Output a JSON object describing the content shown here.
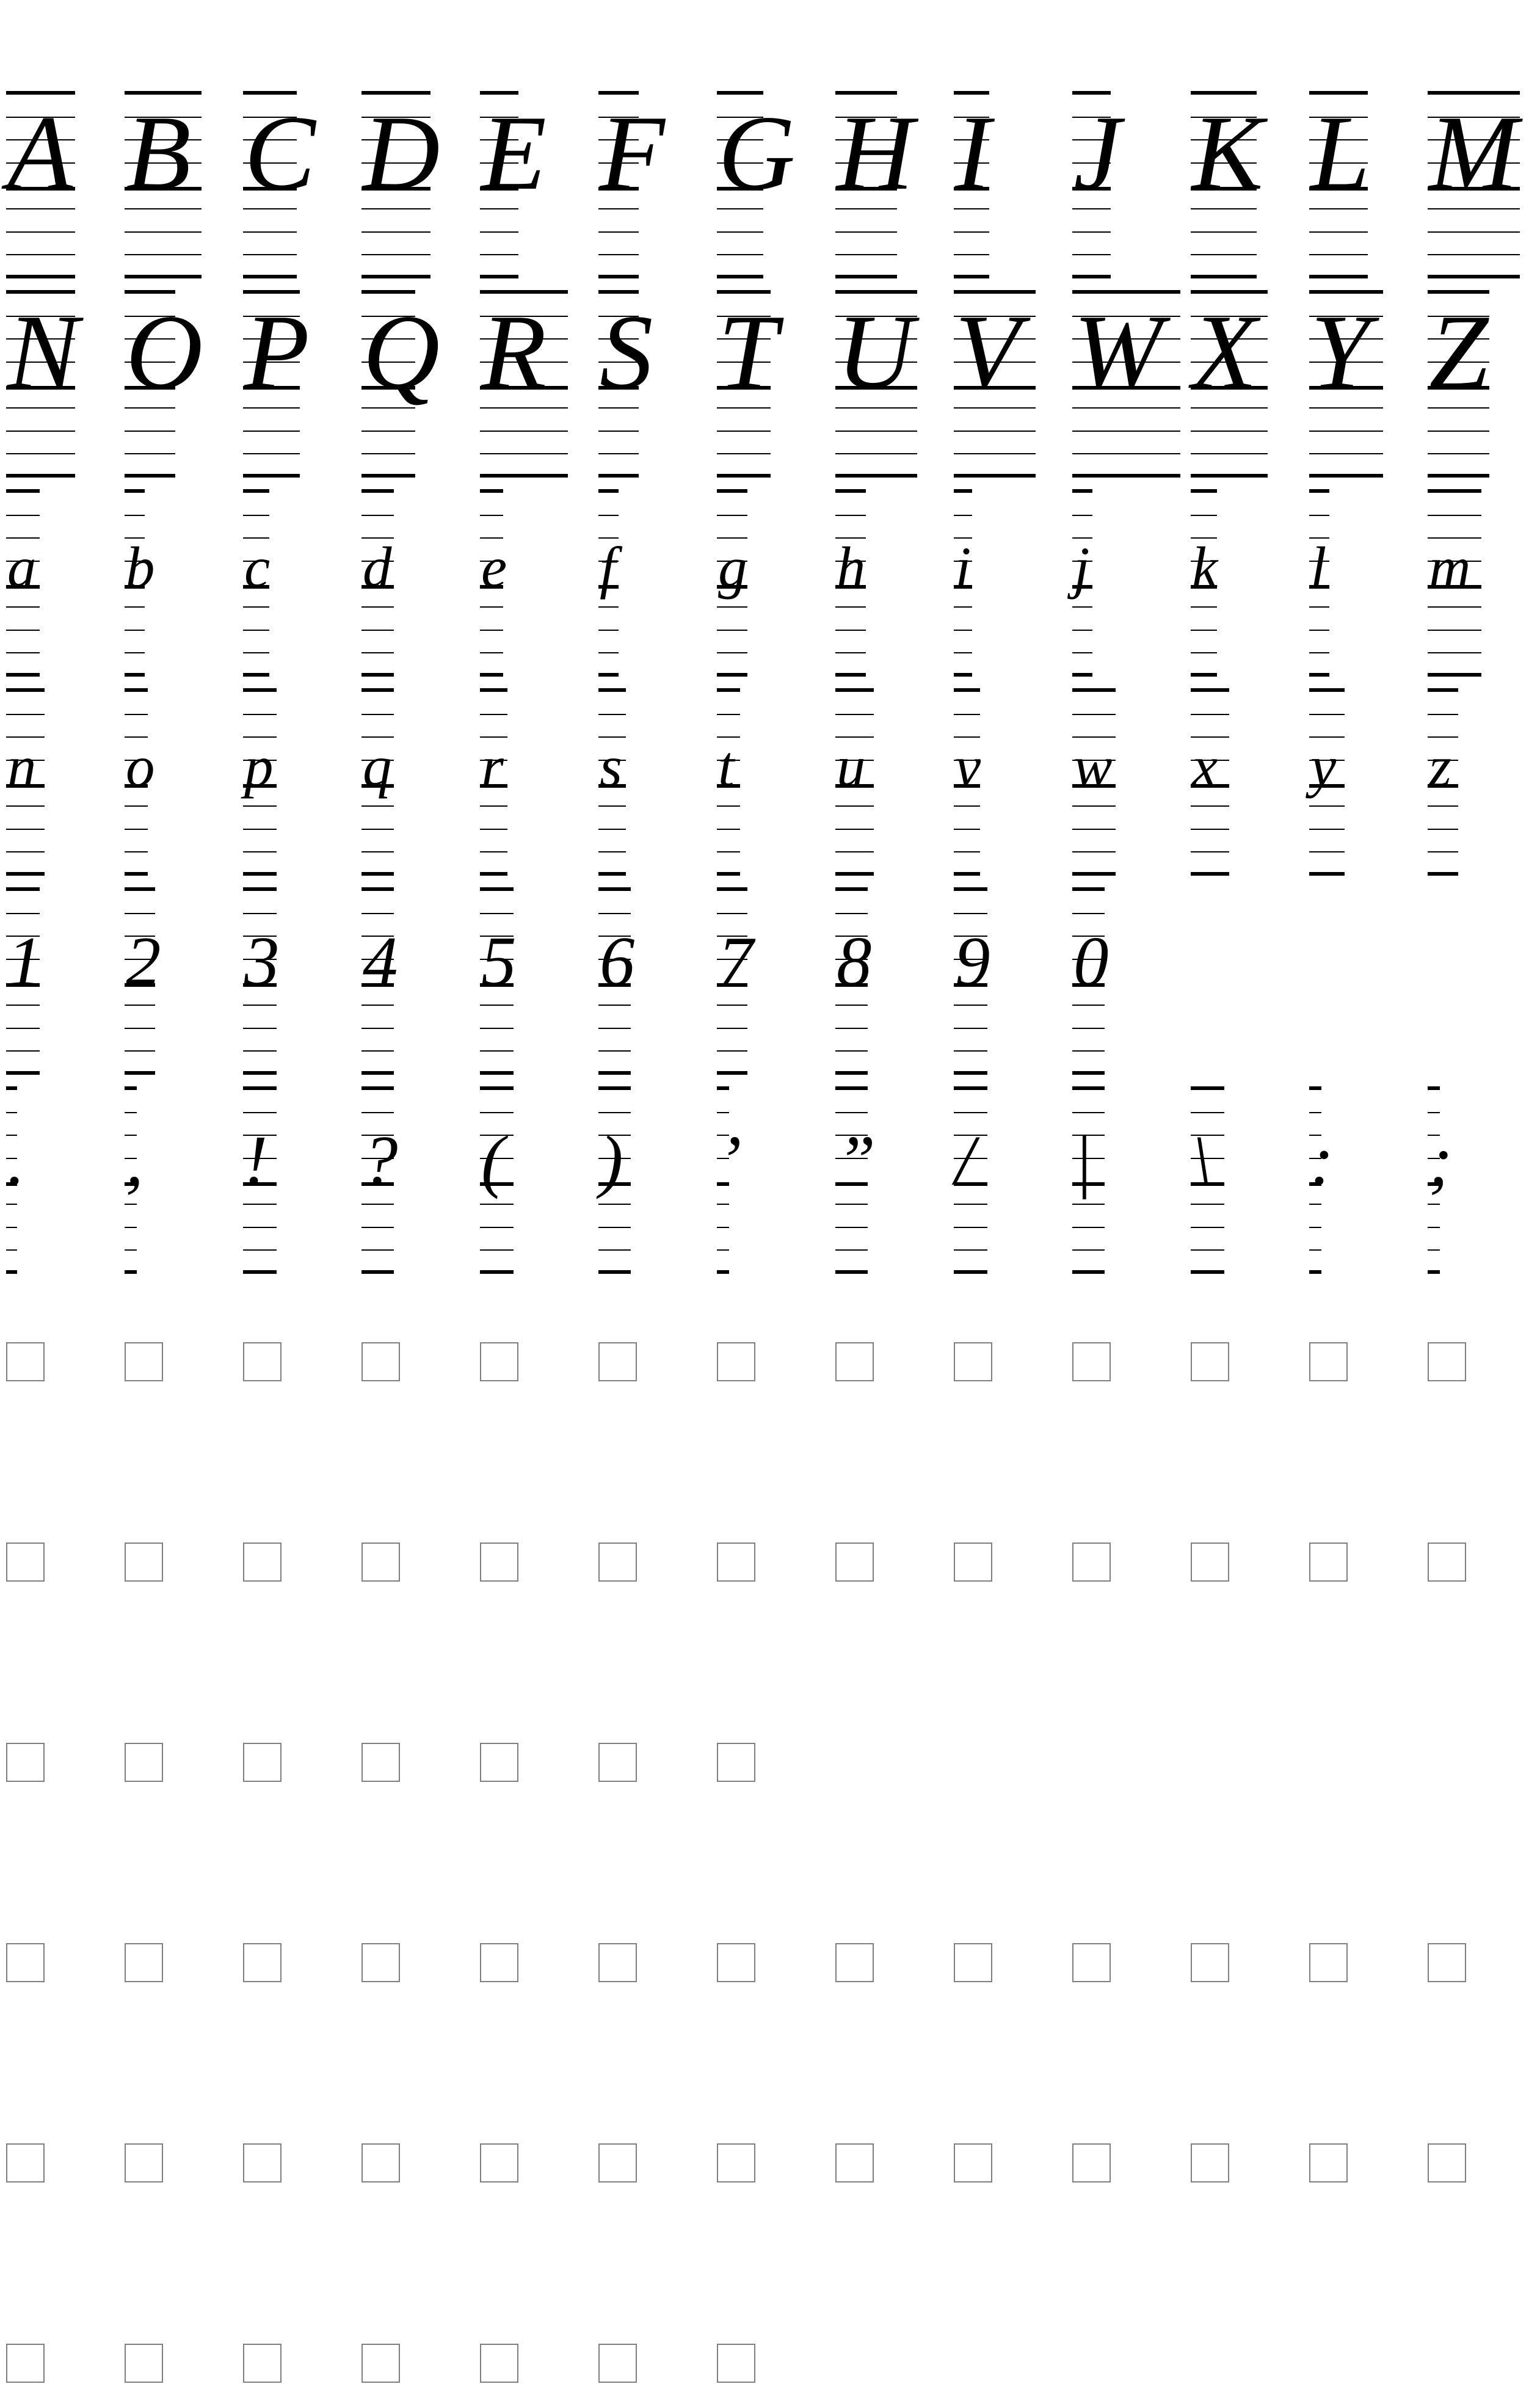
{
  "specimen": {
    "rows": [
      [
        "A",
        "B",
        "C",
        "D",
        "E",
        "F",
        "G",
        "H",
        "I",
        "J",
        "K",
        "L",
        "M"
      ],
      [
        "N",
        "O",
        "P",
        "Q",
        "R",
        "S",
        "T",
        "U",
        "V",
        "W",
        "X",
        "Y",
        "Z"
      ],
      [
        "a",
        "b",
        "c",
        "d",
        "e",
        "f",
        "g",
        "h",
        "i",
        "j",
        "k",
        "l",
        "m"
      ],
      [
        "n",
        "o",
        "p",
        "q",
        "r",
        "s",
        "t",
        "u",
        "v",
        "w",
        "x",
        "y",
        "z"
      ],
      [
        "1",
        "2",
        "3",
        "4",
        "5",
        "6",
        "7",
        "8",
        "9",
        "0"
      ],
      [
        ".",
        ",",
        "!",
        "?",
        "(",
        ")",
        "’",
        "”",
        "/",
        "|",
        "\\",
        ":",
        ";"
      ]
    ],
    "missing_glyph_rows": [
      13,
      13,
      7,
      13,
      13,
      7
    ],
    "colors": {
      "ink": "#000000",
      "guide_line": "#000000",
      "missing_box": "#7f7f7f",
      "background": "#ffffff"
    }
  }
}
